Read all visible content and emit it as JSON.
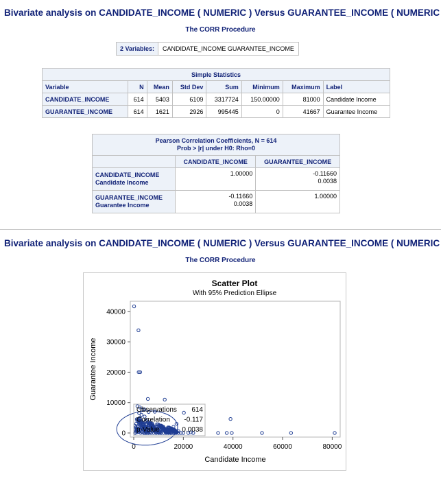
{
  "section1": {
    "title": "Bivariate analysis on CANDIDATE_INCOME ( NUMERIC ) Versus GUARANTEE_INCOME ( NUMERIC )",
    "proc_title": "The CORR Procedure",
    "variables_label": "2 Variables:",
    "variables_value": "CANDIDATE_INCOME GUARANTEE_INCOME",
    "simple_stats": {
      "caption": "Simple Statistics",
      "headers": [
        "Variable",
        "N",
        "Mean",
        "Std Dev",
        "Sum",
        "Minimum",
        "Maximum",
        "Label"
      ],
      "rows": [
        [
          "CANDIDATE_INCOME",
          "614",
          "5403",
          "6109",
          "3317724",
          "150.00000",
          "81000",
          "Candidate Income"
        ],
        [
          "GUARANTEE_INCOME",
          "614",
          "1621",
          "2926",
          "995445",
          "0",
          "41667",
          "Guarantee Income"
        ]
      ]
    },
    "pearson": {
      "caption_line1": "Pearson Correlation Coefficients, N = 614",
      "caption_line2": "Prob > |r| under H0: Rho=0",
      "col_headers": [
        "CANDIDATE_INCOME",
        "GUARANTEE_INCOME"
      ],
      "rows": [
        {
          "var": "CANDIDATE_INCOME",
          "label": "Candidate Income",
          "c1": "1.00000",
          "c1p": "",
          "c2": "-0.11660",
          "c2p": "0.0038"
        },
        {
          "var": "GUARANTEE_INCOME",
          "label": "Guarantee Income",
          "c1": "-0.11660",
          "c1p": "0.0038",
          "c2": "1.00000",
          "c2p": ""
        }
      ]
    }
  },
  "section2": {
    "title": "Bivariate analysis on CANDIDATE_INCOME ( NUMERIC ) Versus GUARANTEE_INCOME ( NUMERIC )",
    "proc_title": "The CORR Procedure"
  },
  "chart_data": {
    "type": "scatter",
    "title": "Scatter Plot",
    "subtitle": "With 95% Prediction Ellipse",
    "xlabel": "Candidate Income",
    "ylabel": "Guarantee Income",
    "xlim": [
      0,
      81000
    ],
    "ylim": [
      0,
      42000
    ],
    "xticks": [
      0,
      20000,
      40000,
      60000,
      80000
    ],
    "yticks": [
      0,
      10000,
      20000,
      30000,
      40000
    ],
    "inset_labels": [
      "Observations",
      "Correlation",
      "p-Value"
    ],
    "inset_values": [
      "614",
      "-0.117",
      "0.0038"
    ],
    "marker_color": "#1f3d93",
    "points": [
      [
        150,
        41667
      ],
      [
        1900,
        33800
      ],
      [
        2000,
        20000
      ],
      [
        2600,
        20000
      ],
      [
        5700,
        11200
      ],
      [
        12500,
        10968
      ],
      [
        1500,
        8800
      ],
      [
        2500,
        8400
      ],
      [
        3500,
        7600
      ],
      [
        4200,
        7800
      ],
      [
        6000,
        6900
      ],
      [
        8500,
        7000
      ],
      [
        20200,
        6667
      ],
      [
        39000,
        4600
      ],
      [
        17263,
        3000
      ],
      [
        16000,
        2000
      ],
      [
        34000,
        0
      ],
      [
        37500,
        0
      ],
      [
        39500,
        0
      ],
      [
        51700,
        0
      ],
      [
        63400,
        0
      ],
      [
        81000,
        0
      ],
      [
        2500,
        5000
      ],
      [
        3000,
        4000
      ],
      [
        4500,
        3500
      ],
      [
        5000,
        2800
      ],
      [
        6500,
        3200
      ],
      [
        7500,
        2500
      ],
      [
        9000,
        2000
      ],
      [
        10500,
        1800
      ],
      [
        12000,
        1500
      ],
      [
        13500,
        1200
      ],
      [
        15000,
        900
      ],
      [
        18000,
        600
      ],
      [
        1000,
        3000
      ],
      [
        1500,
        2000
      ],
      [
        2000,
        1500
      ],
      [
        2500,
        1000
      ],
      [
        3000,
        500
      ],
      [
        3500,
        300
      ],
      [
        4000,
        0
      ],
      [
        4500,
        0
      ],
      [
        5000,
        0
      ],
      [
        6000,
        0
      ],
      [
        7000,
        0
      ],
      [
        8000,
        0
      ],
      [
        9000,
        0
      ],
      [
        10000,
        0
      ],
      [
        11000,
        0
      ],
      [
        12000,
        0
      ],
      [
        13000,
        0
      ],
      [
        14000,
        0
      ],
      [
        15000,
        0
      ],
      [
        16000,
        0
      ],
      [
        17000,
        0
      ],
      [
        18000,
        0
      ],
      [
        19000,
        0
      ],
      [
        20000,
        0
      ],
      [
        22000,
        0
      ],
      [
        23000,
        200
      ],
      [
        24000,
        0
      ],
      [
        3500,
        1800
      ],
      [
        4200,
        1600
      ],
      [
        5500,
        1400
      ],
      [
        6200,
        1700
      ],
      [
        7200,
        1100
      ],
      [
        8200,
        900
      ],
      [
        2800,
        2400
      ],
      [
        3300,
        2100
      ],
      [
        4800,
        2200
      ],
      [
        5900,
        2000
      ],
      [
        1200,
        1200
      ],
      [
        1800,
        800
      ],
      [
        2600,
        3600
      ],
      [
        3900,
        2900
      ],
      [
        5300,
        4200
      ],
      [
        6800,
        1500
      ],
      [
        7800,
        1900
      ],
      [
        9500,
        1300
      ],
      [
        11500,
        800
      ],
      [
        10800,
        2400
      ],
      [
        14200,
        1800
      ],
      [
        3100,
        6000
      ],
      [
        4400,
        5400
      ],
      [
        2200,
        6500
      ]
    ]
  }
}
